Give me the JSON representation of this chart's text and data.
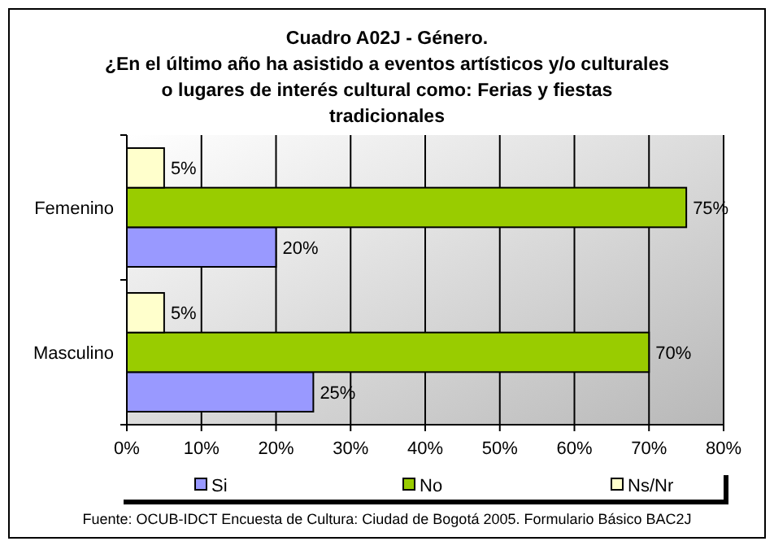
{
  "chart_data": {
    "type": "bar",
    "orientation": "horizontal",
    "title": "Cuadro A02J - Género.\n¿En el último año ha asistido a eventos artísticos y/o culturales\no lugares de interés cultural como: Ferias y fiestas\ntradicionales",
    "categories": [
      "Femenino",
      "Masculino"
    ],
    "series": [
      {
        "name": "Si",
        "color": "#9999ff",
        "values": [
          20,
          25
        ],
        "value_labels": [
          "20%",
          "25%"
        ]
      },
      {
        "name": "No",
        "color": "#99cc00",
        "values": [
          75,
          70
        ],
        "value_labels": [
          "75%",
          "70%"
        ]
      },
      {
        "name": "Ns/Nr",
        "color": "#ffffcc",
        "values": [
          5,
          5
        ],
        "value_labels": [
          "5%",
          "5%"
        ]
      }
    ],
    "xlim": [
      0,
      80
    ],
    "xticks": [
      {
        "value": 0,
        "label": "0%"
      },
      {
        "value": 10,
        "label": "10%"
      },
      {
        "value": 20,
        "label": "20%"
      },
      {
        "value": 30,
        "label": "30%"
      },
      {
        "value": 40,
        "label": "40%"
      },
      {
        "value": 50,
        "label": "50%"
      },
      {
        "value": 60,
        "label": "60%"
      },
      {
        "value": 70,
        "label": "70%"
      },
      {
        "value": 80,
        "label": "80%"
      }
    ],
    "grid": "x",
    "legend": "bottom",
    "annotations": [
      "Fuente: OCUB-IDCT Encuesta de Cultura: Ciudad de Bogotá 2005. Formulario Básico BAC2J"
    ]
  }
}
